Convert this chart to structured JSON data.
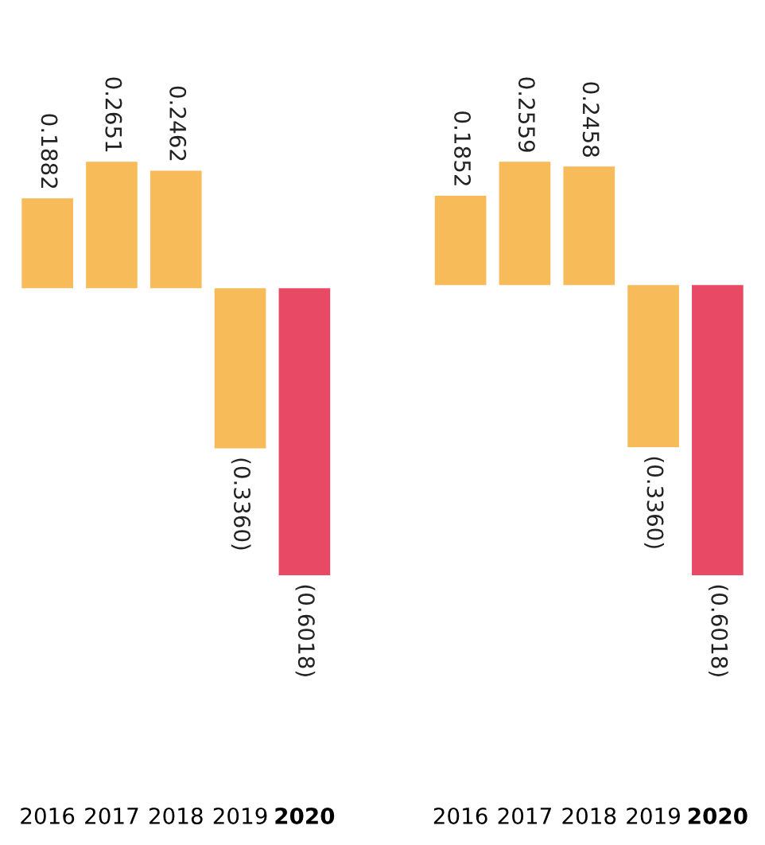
{
  "chart_data": [
    {
      "type": "bar",
      "categories": [
        "2016",
        "2017",
        "2018",
        "2019",
        "2020"
      ],
      "values": [
        0.1882,
        0.2651,
        0.2462,
        -0.336,
        -0.6018
      ],
      "value_labels": [
        "0.1882",
        "0.2651",
        "0.2462",
        "(0.3360)",
        "(0.6018)"
      ],
      "colors": [
        "#f7bb5a",
        "#f7bb5a",
        "#f7bb5a",
        "#f7bb5a",
        "#e84a66"
      ]
    },
    {
      "type": "bar",
      "categories": [
        "2016",
        "2017",
        "2018",
        "2019",
        "2020"
      ],
      "values": [
        0.1852,
        0.2559,
        0.2458,
        -0.336,
        -0.6018
      ],
      "value_labels": [
        "0.1852",
        "0.2559",
        "0.2458",
        "(0.3360)",
        "(0.6018)"
      ],
      "colors": [
        "#f7bb5a",
        "#f7bb5a",
        "#f7bb5a",
        "#f7bb5a",
        "#e84a66"
      ]
    }
  ]
}
